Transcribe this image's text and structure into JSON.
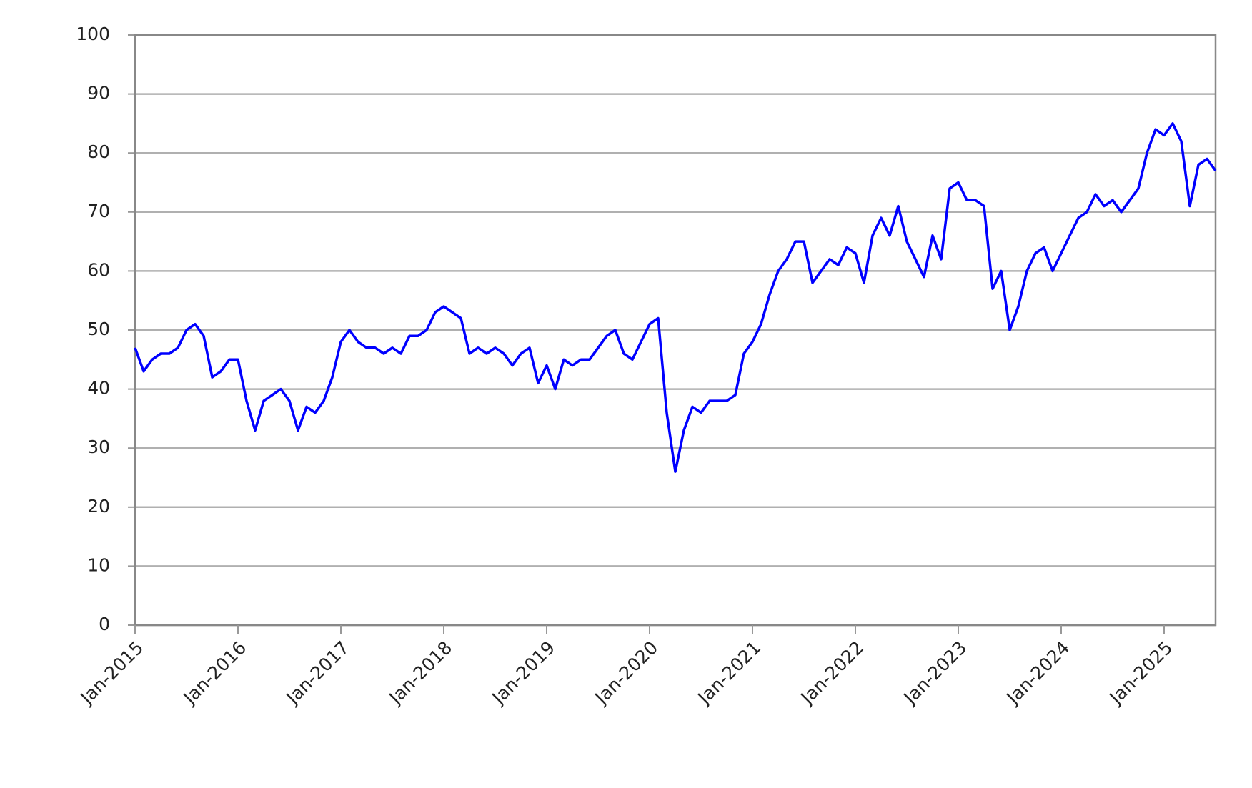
{
  "chart_data": {
    "type": "line",
    "x": [
      "2015-01",
      "2015-02",
      "2015-03",
      "2015-04",
      "2015-05",
      "2015-06",
      "2015-07",
      "2015-08",
      "2015-09",
      "2015-10",
      "2015-11",
      "2015-12",
      "2016-01",
      "2016-02",
      "2016-03",
      "2016-04",
      "2016-05",
      "2016-06",
      "2016-07",
      "2016-08",
      "2016-09",
      "2016-10",
      "2016-11",
      "2016-12",
      "2017-01",
      "2017-02",
      "2017-03",
      "2017-04",
      "2017-05",
      "2017-06",
      "2017-07",
      "2017-08",
      "2017-09",
      "2017-10",
      "2017-11",
      "2017-12",
      "2018-01",
      "2018-02",
      "2018-03",
      "2018-04",
      "2018-05",
      "2018-06",
      "2018-07",
      "2018-08",
      "2018-09",
      "2018-10",
      "2018-11",
      "2018-12",
      "2019-01",
      "2019-02",
      "2019-03",
      "2019-04",
      "2019-05",
      "2019-06",
      "2019-07",
      "2019-08",
      "2019-09",
      "2019-10",
      "2019-11",
      "2019-12",
      "2020-01",
      "2020-02",
      "2020-03",
      "2020-04",
      "2020-05",
      "2020-06",
      "2020-07",
      "2020-08",
      "2020-09",
      "2020-10",
      "2020-11",
      "2020-12",
      "2021-01",
      "2021-02",
      "2021-03",
      "2021-04",
      "2021-05",
      "2021-06",
      "2021-07",
      "2021-08",
      "2021-09",
      "2021-10",
      "2021-11",
      "2021-12",
      "2022-01",
      "2022-02",
      "2022-03",
      "2022-04",
      "2022-05",
      "2022-06",
      "2022-07",
      "2022-08",
      "2022-09",
      "2022-10",
      "2022-11",
      "2022-12",
      "2023-01",
      "2023-02",
      "2023-03",
      "2023-04",
      "2023-05",
      "2023-06",
      "2023-07",
      "2023-08",
      "2023-09",
      "2023-10",
      "2023-11",
      "2023-12",
      "2024-01",
      "2024-02",
      "2024-03",
      "2024-04",
      "2024-05",
      "2024-06",
      "2024-07",
      "2024-08",
      "2024-09",
      "2024-10",
      "2024-11",
      "2024-12",
      "2025-01",
      "2025-02",
      "2025-03",
      "2025-04",
      "2025-05",
      "2025-06",
      "2025-07"
    ],
    "series": [
      {
        "color": "#0000ff",
        "values": [
          47,
          43,
          45,
          46,
          46,
          47,
          50,
          51,
          49,
          42,
          43,
          45,
          45,
          38,
          33,
          38,
          39,
          40,
          38,
          33,
          37,
          36,
          38,
          42,
          48,
          50,
          48,
          47,
          47,
          46,
          47,
          46,
          49,
          49,
          50,
          53,
          54,
          53,
          52,
          46,
          47,
          46,
          47,
          46,
          44,
          46,
          47,
          41,
          44,
          40,
          45,
          44,
          45,
          45,
          47,
          49,
          50,
          46,
          45,
          48,
          51,
          52,
          36,
          26,
          33,
          37,
          36,
          38,
          38,
          38,
          39,
          46,
          48,
          51,
          56,
          60,
          62,
          65,
          65,
          58,
          60,
          62,
          61,
          64,
          63,
          58,
          66,
          69,
          66,
          71,
          65,
          62,
          59,
          66,
          62,
          74,
          75,
          72,
          72,
          71,
          57,
          60,
          50,
          54,
          60,
          63,
          64,
          60,
          63,
          66,
          69,
          70,
          73,
          71,
          72,
          70,
          72,
          74,
          80,
          84,
          83,
          85,
          82,
          71,
          78,
          79,
          77
        ]
      }
    ],
    "xlim": [
      "2015-01",
      "2025-07"
    ],
    "xticks": [
      {
        "value": "2015-01",
        "label": "Jan-2015"
      },
      {
        "value": "2016-01",
        "label": "Jan-2016"
      },
      {
        "value": "2017-01",
        "label": "Jan-2017"
      },
      {
        "value": "2018-01",
        "label": "Jan-2018"
      },
      {
        "value": "2019-01",
        "label": "Jan-2019"
      },
      {
        "value": "2020-01",
        "label": "Jan-2020"
      },
      {
        "value": "2021-01",
        "label": "Jan-2021"
      },
      {
        "value": "2022-01",
        "label": "Jan-2022"
      },
      {
        "value": "2023-01",
        "label": "Jan-2023"
      },
      {
        "value": "2024-01",
        "label": "Jan-2024"
      },
      {
        "value": "2025-01",
        "label": "Jan-2025"
      }
    ],
    "ylim": [
      0,
      100
    ],
    "yticks": [
      0,
      10,
      20,
      30,
      40,
      50,
      60,
      70,
      80,
      90,
      100
    ],
    "grid": true
  }
}
